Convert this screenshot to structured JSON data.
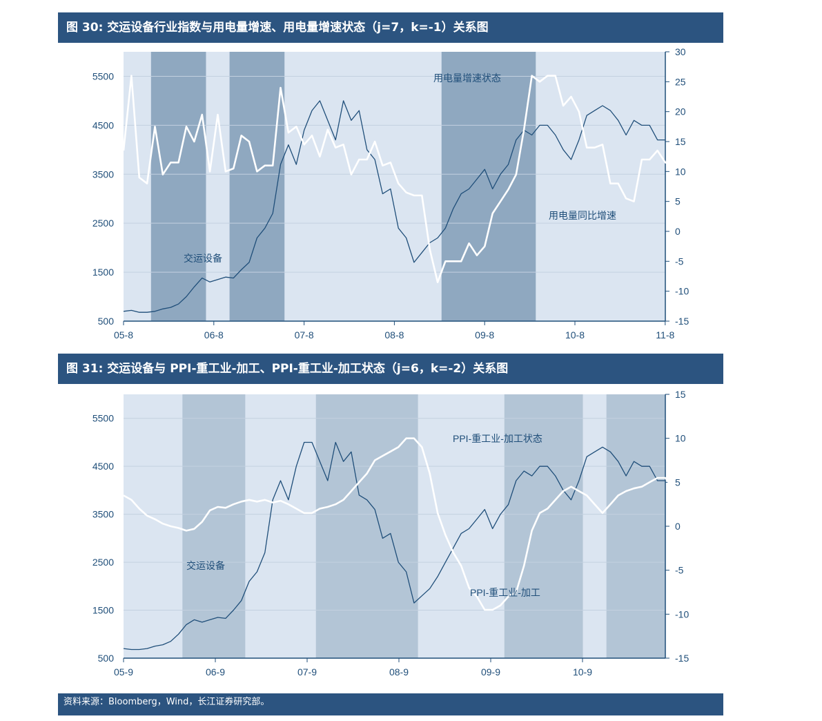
{
  "chart1": {
    "title": "图 30:  交运设备行业指数与用电量增速、用电量增速状态（j=7，k=-1）关系图",
    "chart_data": {
      "type": "line",
      "x_ticks": [
        "05-8",
        "06-8",
        "07-8",
        "08-8",
        "09-8",
        "10-8",
        "11-8"
      ],
      "y_left_ticks": [
        500,
        1500,
        2500,
        3500,
        4500,
        5500
      ],
      "y_left_range": [
        500,
        6000
      ],
      "y_right_ticks": [
        -15,
        -10,
        -5,
        0,
        5,
        10,
        15,
        20,
        25,
        30
      ],
      "y_right_range": [
        -15,
        30
      ],
      "shaded_periods": [
        [
          3.5,
          10.5
        ],
        [
          13.5,
          20.5
        ],
        [
          40.5,
          52.5
        ]
      ],
      "series": [
        {
          "name": "交运设备",
          "axis": "left",
          "color": "#1f4e79",
          "values": [
            700,
            720,
            680,
            680,
            700,
            750,
            780,
            850,
            1000,
            1200,
            1380,
            1300,
            1350,
            1400,
            1380,
            1550,
            1700,
            2200,
            2400,
            2700,
            3700,
            4100,
            3700,
            4400,
            4800,
            5000,
            4600,
            4200,
            5000,
            4600,
            4800,
            4000,
            3800,
            3100,
            3200,
            2400,
            2200,
            1700,
            1900,
            2100,
            2200,
            2400,
            2800,
            3100,
            3200,
            3400,
            3600,
            3200,
            3500,
            3700,
            4200,
            4400,
            4300,
            4500,
            4500,
            4300,
            4000,
            3800,
            4200,
            4700,
            4800,
            4900,
            4800,
            4600,
            4300,
            4600,
            4500,
            4500,
            4200,
            4200
          ]
        },
        {
          "name": "用电量同比增速",
          "axis": "right",
          "color": "#ffffff",
          "values": [
            13.5,
            26,
            9,
            8,
            17.5,
            9.5,
            11.5,
            11.5,
            17.5,
            15,
            19.5,
            10,
            19.5,
            10,
            10.5,
            16,
            15,
            10,
            11,
            11,
            24,
            16.5,
            17.5,
            14.5,
            16,
            12.5,
            17,
            14,
            14.5,
            9.5,
            12,
            12,
            15,
            11,
            11.5,
            8,
            6.5,
            6,
            6,
            -3,
            -8.5,
            -5,
            -5,
            -5,
            -2,
            -4,
            -2.5,
            3,
            5,
            7,
            9.5,
            17,
            26,
            25,
            26,
            26,
            21,
            22.5,
            20,
            14,
            14,
            14.5,
            8,
            8,
            5.5,
            5,
            12,
            12,
            13.5,
            11.5,
            11,
            11
          ]
        }
      ],
      "annotations": {
        "state": "用电量增速状态",
        "rate": "用电量同比增速",
        "index": "交运设备"
      }
    }
  },
  "chart2": {
    "title": "图 31:  交运设备与 PPI-重工业-加工、PPI-重工业-加工状态（j=6，k=-2）关系图",
    "chart_data": {
      "type": "line",
      "x_ticks": [
        "05-9",
        "06-9",
        "07-9",
        "08-9",
        "09-9",
        "10-9"
      ],
      "y_left_ticks": [
        500,
        1500,
        2500,
        3500,
        4500,
        5500
      ],
      "y_left_range": [
        500,
        6000
      ],
      "y_right_ticks": [
        -15,
        -10,
        -5,
        0,
        5,
        10,
        15
      ],
      "y_right_range": [
        -15,
        15
      ],
      "shaded_periods": [
        [
          7.5,
          15.5
        ],
        [
          24.5,
          37.5
        ],
        [
          48.5,
          58.5
        ],
        [
          61.5,
          72
        ]
      ],
      "series": [
        {
          "name": "交运设备",
          "axis": "left",
          "color": "#1f4e79",
          "values": [
            700,
            680,
            680,
            700,
            750,
            780,
            850,
            1000,
            1200,
            1300,
            1250,
            1300,
            1350,
            1330,
            1500,
            1700,
            2100,
            2300,
            2700,
            3800,
            4200,
            3800,
            4500,
            5000,
            5000,
            4600,
            4200,
            5000,
            4600,
            4800,
            3900,
            3800,
            3600,
            3000,
            3100,
            2500,
            2300,
            1650,
            1800,
            1950,
            2200,
            2500,
            2800,
            3100,
            3200,
            3400,
            3600,
            3200,
            3500,
            3700,
            4200,
            4400,
            4300,
            4500,
            4500,
            4300,
            4000,
            3800,
            4200,
            4700,
            4800,
            4900,
            4800,
            4600,
            4300,
            4600,
            4500,
            4500,
            4200,
            4200
          ]
        },
        {
          "name": "PPI-重工业-加工",
          "axis": "right",
          "color": "#ffffff",
          "values": [
            3.5,
            3,
            2,
            1.2,
            0.8,
            0.3,
            0,
            -0.2,
            -0.5,
            -0.3,
            0.5,
            1.8,
            2.2,
            2.1,
            2.5,
            2.8,
            3,
            2.8,
            3,
            2.7,
            2.9,
            2.5,
            2,
            1.5,
            1.5,
            2,
            2.2,
            2.5,
            3,
            4,
            5,
            6,
            7.5,
            8,
            8.5,
            9,
            10,
            10,
            9,
            6,
            1.5,
            -1,
            -3,
            -4.5,
            -7,
            -8,
            -9.5,
            -9.5,
            -9,
            -8,
            -7.5,
            -4.5,
            -0.5,
            1.5,
            2,
            3,
            4,
            4.5,
            4,
            3.5,
            2.5,
            1.5,
            2.5,
            3.5,
            4,
            4.3,
            4.5,
            5,
            5.5,
            5.5,
            4.3,
            4.5
          ]
        }
      ],
      "annotations": {
        "state": "PPI-重工业-加工状态",
        "rate": "PPI-重工业-加工",
        "index": "交运设备"
      }
    }
  },
  "source": "资料来源：Bloomberg，Wind，长江证券研究部。"
}
